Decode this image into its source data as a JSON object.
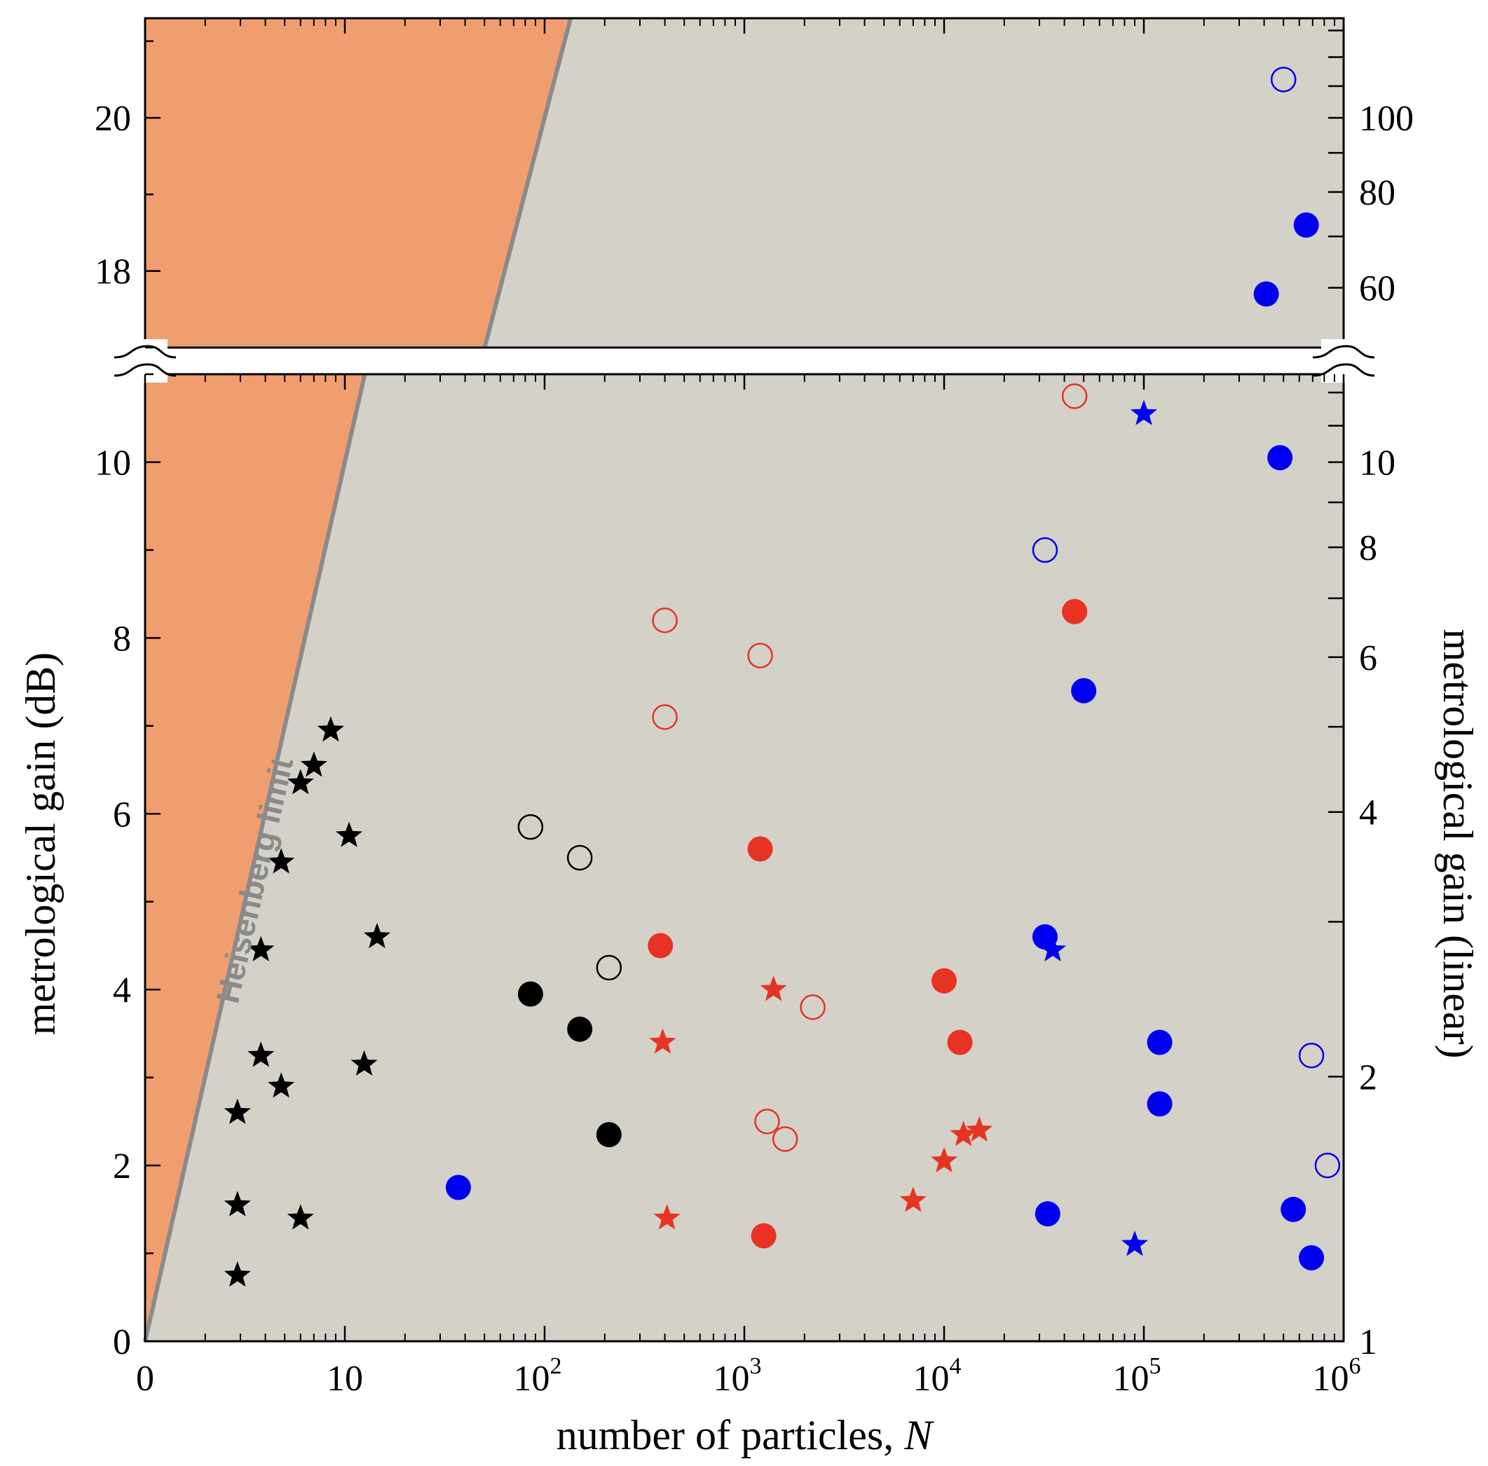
{
  "chart_data": {
    "type": "scatter",
    "title": "",
    "xlabel": "number of particles, N",
    "xlabel_var": "N",
    "ylabel_left": "metrological gain (dB)",
    "ylabel_right": "metrological gain (linear)",
    "x_scale": "log10 of N, axis starts at N = 1 (labelled 0)",
    "xlim_log10": [
      0,
      6
    ],
    "x_ticks": [
      {
        "log": 0,
        "label": "0"
      },
      {
        "log": 1,
        "label": "10"
      },
      {
        "log": 2,
        "label": "10",
        "exp": "2"
      },
      {
        "log": 3,
        "label": "10",
        "exp": "3"
      },
      {
        "log": 4,
        "label": "10",
        "exp": "4"
      },
      {
        "log": 5,
        "label": "10",
        "exp": "5"
      },
      {
        "log": 6,
        "label": "10",
        "exp": "6"
      }
    ],
    "y_lower": {
      "ylim_db": [
        0,
        11
      ],
      "ticks": [
        "0",
        "2",
        "4",
        "6",
        "8",
        "10"
      ]
    },
    "y_upper": {
      "ylim_db": [
        17,
        21.3
      ],
      "ticks": [
        "18",
        "20"
      ]
    },
    "right_ticks_lower": [
      {
        "value": 1,
        "label": "1"
      },
      {
        "value": 2,
        "label": "2"
      },
      {
        "value": 4,
        "label": "4"
      },
      {
        "value": 6,
        "label": "6"
      },
      {
        "value": 8,
        "label": "8"
      },
      {
        "value": 10,
        "label": "10"
      }
    ],
    "right_ticks_upper": [
      {
        "value": 60,
        "label": "60"
      },
      {
        "value": 80,
        "label": "80"
      },
      {
        "value": 100,
        "label": "100"
      }
    ],
    "heisenberg_limit": {
      "label": "Heisenberg limit",
      "relation": "gain_dB = 10*log10(N)"
    },
    "colors": {
      "plot_bg": "#d4d1c8",
      "forbidden_region": "#f09e6f",
      "heisenberg_line": "#8a8a8a",
      "black": "#000000",
      "red": "#e63323",
      "blue": "#0000f0"
    },
    "series": [
      {
        "name": "black stars",
        "color": "black",
        "marker": "star",
        "filled": true,
        "points": [
          [
            2.9,
            2.6
          ],
          [
            2.9,
            1.55
          ],
          [
            2.9,
            0.75
          ],
          [
            3.8,
            4.45
          ],
          [
            3.8,
            3.25
          ],
          [
            4.8,
            5.45
          ],
          [
            4.8,
            2.9
          ],
          [
            6.0,
            6.35
          ],
          [
            6.0,
            1.4
          ],
          [
            7.0,
            6.55
          ],
          [
            8.5,
            6.95
          ],
          [
            10.5,
            5.75
          ],
          [
            12.5,
            3.15
          ],
          [
            14.5,
            4.6
          ]
        ]
      },
      {
        "name": "black circles",
        "color": "black",
        "marker": "circle",
        "filled": true,
        "points": [
          [
            85,
            3.95
          ],
          [
            150,
            3.55
          ],
          [
            210,
            2.35
          ]
        ]
      },
      {
        "name": "black open circles",
        "color": "black",
        "marker": "circle",
        "filled": false,
        "points": [
          [
            85,
            5.85
          ],
          [
            150,
            5.5
          ],
          [
            210,
            4.25
          ]
        ]
      },
      {
        "name": "red stars",
        "color": "red",
        "marker": "star",
        "filled": true,
        "points": [
          [
            390,
            3.4
          ],
          [
            410,
            1.4
          ],
          [
            1400,
            4.0
          ],
          [
            7000,
            1.6
          ],
          [
            10000,
            2.05
          ],
          [
            12500,
            2.35
          ],
          [
            15000,
            2.4
          ]
        ]
      },
      {
        "name": "red circles",
        "color": "red",
        "marker": "circle",
        "filled": true,
        "points": [
          [
            380,
            4.5
          ],
          [
            1200,
            5.6
          ],
          [
            1250,
            1.2
          ],
          [
            10000,
            4.1
          ],
          [
            12000,
            3.4
          ],
          [
            45000,
            8.3
          ]
        ]
      },
      {
        "name": "red open circles",
        "color": "red",
        "marker": "circle",
        "filled": false,
        "points": [
          [
            400,
            8.2
          ],
          [
            400,
            7.1
          ],
          [
            1200,
            7.8
          ],
          [
            1300,
            2.5
          ],
          [
            1600,
            2.3
          ],
          [
            2200,
            3.8
          ],
          [
            45000,
            10.75
          ]
        ]
      },
      {
        "name": "blue stars",
        "color": "blue",
        "marker": "star",
        "filled": true,
        "points": [
          [
            35000,
            4.45
          ],
          [
            90000,
            1.1
          ],
          [
            100000,
            10.55
          ]
        ]
      },
      {
        "name": "blue circles",
        "color": "blue",
        "marker": "circle",
        "filled": true,
        "points": [
          [
            37,
            1.75
          ],
          [
            32000,
            4.6
          ],
          [
            33000,
            1.45
          ],
          [
            50000,
            7.4
          ],
          [
            120000,
            3.4
          ],
          [
            120000,
            2.7
          ],
          [
            480000,
            10.05
          ],
          [
            560000,
            1.5
          ],
          [
            690000,
            0.95
          ],
          [
            410000,
            17.7
          ],
          [
            650000,
            18.6
          ]
        ]
      },
      {
        "name": "blue open circles",
        "color": "blue",
        "marker": "circle",
        "filled": false,
        "points": [
          [
            32000,
            9.0
          ],
          [
            690000,
            3.25
          ],
          [
            830000,
            2.0
          ],
          [
            500000,
            20.5
          ]
        ]
      }
    ]
  }
}
